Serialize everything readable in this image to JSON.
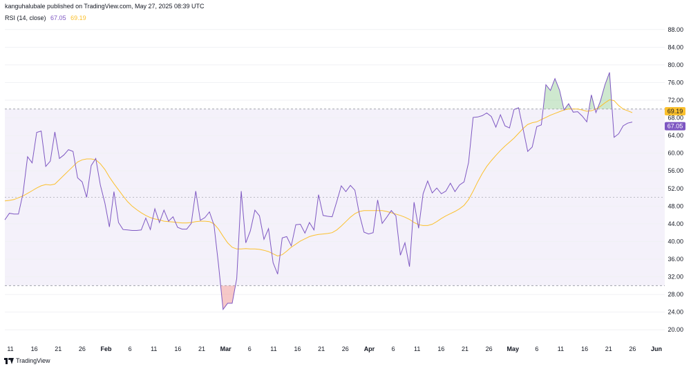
{
  "header": {
    "published": "kanguhalubale published on TradingView.com, May 27, 2025 08:39 UTC"
  },
  "legend": {
    "name": "RSI (14, close)",
    "rsi_value": "67.05",
    "ma_value": "69.19"
  },
  "footer": {
    "brand": "TradingView"
  },
  "colors": {
    "rsi": "#7e57c2",
    "ma": "#fbc02d",
    "band": "#ede7f6",
    "overbought": "#a5d6a7",
    "oversold": "#ef9a9a"
  },
  "chart_data": {
    "type": "line",
    "title": "RSI (14, close)",
    "ylim": [
      18,
      90
    ],
    "y_ticks": [
      "88.00",
      "84.00",
      "80.00",
      "76.00",
      "72.00",
      "68.00",
      "64.00",
      "60.00",
      "56.00",
      "52.00",
      "48.00",
      "44.00",
      "40.00",
      "36.00",
      "32.00",
      "28.00",
      "24.00",
      "20.00"
    ],
    "x_ticks": [
      "11",
      "16",
      "21",
      "26",
      "Feb",
      "6",
      "11",
      "16",
      "21",
      "Mar",
      "6",
      "11",
      "16",
      "21",
      "26",
      "Apr",
      "6",
      "11",
      "16",
      "21",
      "26",
      "May",
      "6",
      "11",
      "16",
      "21",
      "26",
      "Jun"
    ],
    "bands": {
      "upper": 70,
      "middle": 50,
      "lower": 30
    },
    "price_labels": [
      {
        "text": "69.19",
        "value": 69.19
      },
      {
        "text": "67.05",
        "value": 67.05
      }
    ],
    "series": [
      {
        "name": "RSI",
        "values": [
          44.9,
          46.4,
          46.2,
          46.2,
          50.9,
          59.2,
          57.8,
          64.7,
          65.0,
          57.0,
          58.2,
          64.8,
          58.8,
          59.6,
          60.8,
          60.4,
          54.4,
          53.5,
          50.0,
          57.2,
          58.8,
          52.8,
          48.7,
          43.3,
          51.3,
          44.3,
          42.7,
          42.6,
          42.5,
          42.5,
          42.6,
          45.3,
          42.7,
          47.4,
          44.3,
          47.1,
          44.6,
          45.6,
          43.2,
          42.8,
          42.8,
          44.1,
          51.4,
          44.8,
          45.4,
          46.7,
          43.7,
          34.8,
          24.6,
          26.0,
          26.0,
          31.6,
          51.4,
          39.7,
          42.4,
          47.1,
          45.8,
          40.5,
          42.9,
          35.2,
          32.6,
          40.8,
          41.1,
          39.0,
          43.8,
          43.9,
          41.9,
          44.3,
          42.6,
          50.6,
          45.9,
          45.7,
          45.6,
          49.0,
          52.6,
          51.3,
          52.7,
          51.6,
          46.1,
          42.1,
          41.7,
          42.0,
          49.4,
          44.1,
          45.5,
          47.0,
          45.8,
          36.9,
          39.7,
          34.3,
          48.9,
          43.0,
          50.8,
          53.7,
          51.0,
          52.1,
          50.8,
          51.4,
          53.2,
          51.3,
          52.8,
          53.5,
          57.9,
          68.1,
          68.2,
          68.5,
          69.1,
          68.3,
          65.9,
          68.7,
          66.2,
          65.7,
          69.9,
          70.3,
          65.4,
          60.4,
          61.4,
          66.0,
          66.4,
          75.5,
          74.2,
          76.9,
          74.3,
          69.8,
          71.2,
          69.3,
          69.4,
          68.4,
          67.1,
          73.2,
          69.2,
          71.8,
          75.5,
          78.3,
          63.6,
          64.4,
          66.2,
          66.8,
          67.05
        ]
      },
      {
        "name": "MA",
        "values": [
          49.2,
          49.3,
          49.5,
          49.9,
          50.3,
          50.9,
          51.5,
          52.1,
          52.6,
          52.9,
          52.8,
          53.0,
          54.0,
          55.0,
          56.0,
          57.0,
          58.0,
          58.5,
          58.7,
          58.7,
          58.5,
          57.6,
          56.3,
          54.6,
          53.1,
          51.7,
          50.3,
          49.0,
          48.0,
          47.2,
          46.5,
          45.9,
          45.4,
          45.1,
          44.9,
          44.6,
          44.5,
          44.4,
          44.3,
          44.2,
          44.2,
          44.3,
          44.5,
          44.6,
          44.6,
          44.5,
          44.0,
          42.8,
          41.2,
          39.7,
          38.7,
          38.3,
          38.3,
          38.4,
          38.3,
          38.3,
          38.2,
          38.0,
          37.7,
          37.2,
          36.7,
          37.0,
          37.8,
          38.7,
          39.4,
          40.1,
          40.6,
          41.1,
          41.4,
          41.6,
          41.7,
          41.8,
          42.0,
          42.6,
          43.5,
          44.5,
          45.5,
          46.3,
          46.8,
          47.0,
          47.0,
          47.0,
          47.0,
          47.0,
          46.8,
          46.5,
          46.2,
          45.9,
          45.5,
          45.0,
          44.3,
          43.8,
          43.6,
          43.6,
          43.9,
          44.5,
          45.2,
          45.8,
          46.3,
          46.8,
          47.4,
          48.2,
          49.5,
          51.4,
          53.5,
          55.4,
          57.0,
          58.3,
          59.5,
          60.6,
          61.6,
          62.5,
          63.4,
          64.5,
          65.6,
          66.5,
          66.9,
          67.1,
          67.6,
          68.1,
          68.6,
          69.0,
          69.4,
          69.8,
          70.0,
          70.0,
          70.0,
          69.8,
          69.5,
          69.6,
          70.0,
          70.6,
          71.4,
          72.1,
          71.9,
          70.8,
          70.0,
          69.6,
          69.19
        ]
      }
    ]
  }
}
